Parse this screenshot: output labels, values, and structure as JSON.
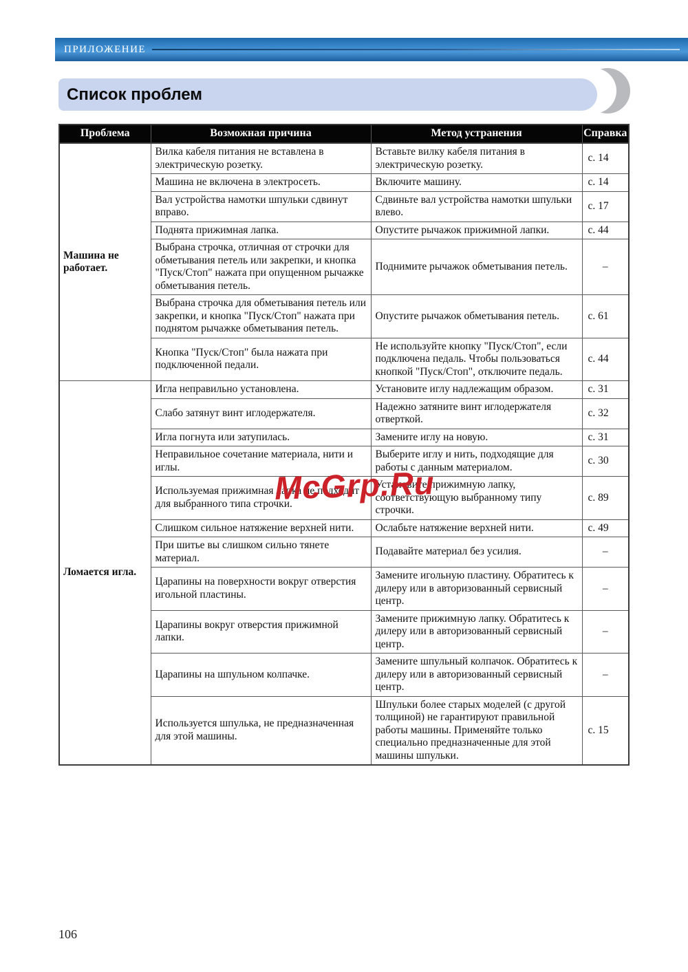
{
  "top_bar": {
    "label": "ПРИЛОЖЕНИЕ"
  },
  "banner": {
    "title": "Список проблем"
  },
  "watermark": {
    "text": "McGrp.Ru"
  },
  "page": {
    "number": "106"
  },
  "colors": {
    "top_bar_blue": "#3f8ed2",
    "banner_bg": "#c9d5ee",
    "crescent_gray": "#b8babd",
    "header_bg": "#050505",
    "watermark_red": "#cc2128"
  },
  "table": {
    "headers": [
      "Проблема",
      "Возможная причина",
      "Метод устранения",
      "Справка"
    ],
    "groups": [
      {
        "problem": "Машина не работает.",
        "rows": [
          {
            "cause": "Вилка кабеля питания не вставлена в электрическую розетку.",
            "remedy": "Вставьте вилку кабеля питания в электрическую розетку.",
            "ref": "с. 14"
          },
          {
            "cause": "Машина не включена в электросеть.",
            "remedy": "Включите машину.",
            "ref": "с. 14"
          },
          {
            "cause": "Вал устройства намотки шпульки сдвинут вправо.",
            "remedy": "Сдвиньте вал устройства намотки шпульки влево.",
            "ref": "с. 17"
          },
          {
            "cause": "Поднята прижимная лапка.",
            "remedy": "Опустите рычажок прижимной лапки.",
            "ref": "с. 44"
          },
          {
            "cause": "Выбрана строчка, отличная от строчки для обметывания петель или закрепки, и кнопка \"Пуск/Стоп\" нажата при опущенном рычажке обметывания петель.",
            "remedy": "Поднимите рычажок обметывания петель.",
            "ref": "–"
          },
          {
            "cause": "Выбрана строчка для обметывания петель или закрепки, и кнопка \"Пуск/Стоп\" нажата при поднятом рычажке обметывания петель.",
            "remedy": "Опустите рычажок обметывания петель.",
            "ref": "с. 61"
          },
          {
            "cause": "Кнопка \"Пуск/Стоп\" была нажата при подключенной педали.",
            "remedy": "Не используйте кнопку \"Пуск/Стоп\", если подключена педаль. Чтобы пользоваться кнопкой \"Пуск/Стоп\", отключите педаль.",
            "ref": "с. 44"
          }
        ]
      },
      {
        "problem": "Ломается игла.",
        "rows": [
          {
            "cause": "Игла неправильно установлена.",
            "remedy": "Установите иглу надлежащим образом.",
            "ref": "с. 31"
          },
          {
            "cause": "Слабо затянут винт иглодержателя.",
            "remedy": "Надежно затяните винт иглодержателя отверткой.",
            "ref": "с. 32"
          },
          {
            "cause": "Игла погнута или затупилась.",
            "remedy": "Замените иглу на новую.",
            "ref": "с. 31"
          },
          {
            "cause": "Неправильное сочетание материала, нити и иглы.",
            "remedy": "Выберите иглу и нить, подходящие для работы с данным материалом.",
            "ref": "с. 30"
          },
          {
            "cause": "Используемая прижимная лапка не подходит для выбранного типа строчки.",
            "remedy": "Установите прижимную лапку, соответствующую выбранному типу строчки.",
            "ref": "с. 89"
          },
          {
            "cause": "Слишком сильное натяжение верхней нити.",
            "remedy": "Ослабьте натяжение верхней нити.",
            "ref": "с. 49"
          },
          {
            "cause": "При шитье вы слишком сильно тянете материал.",
            "remedy": "Подавайте материал без усилия.",
            "ref": "–"
          },
          {
            "cause": "Царапины на поверхности вокруг отверстия игольной пластины.",
            "remedy": "Замените игольную пластину. Обратитесь к дилеру или в авторизованный сервисный центр.",
            "ref": "–"
          },
          {
            "cause": "Царапины вокруг отверстия прижимной лапки.",
            "remedy": "Замените прижимную лапку. Обратитесь к дилеру или в авторизованный сервисный центр.",
            "ref": "–"
          },
          {
            "cause": "Царапины на шпульном колпачке.",
            "remedy": "Замените шпульный колпачок. Обратитесь к дилеру или в авторизованный сервисный центр.",
            "ref": "–"
          },
          {
            "cause": "Используется шпулька, не предназначенная для этой машины.",
            "remedy": "Шпульки более старых моделей (с другой толщиной) не гарантируют правильной работы машины. Применяйте только специально предназначенные для этой машины шпульки.",
            "ref": "с. 15"
          }
        ]
      }
    ]
  }
}
